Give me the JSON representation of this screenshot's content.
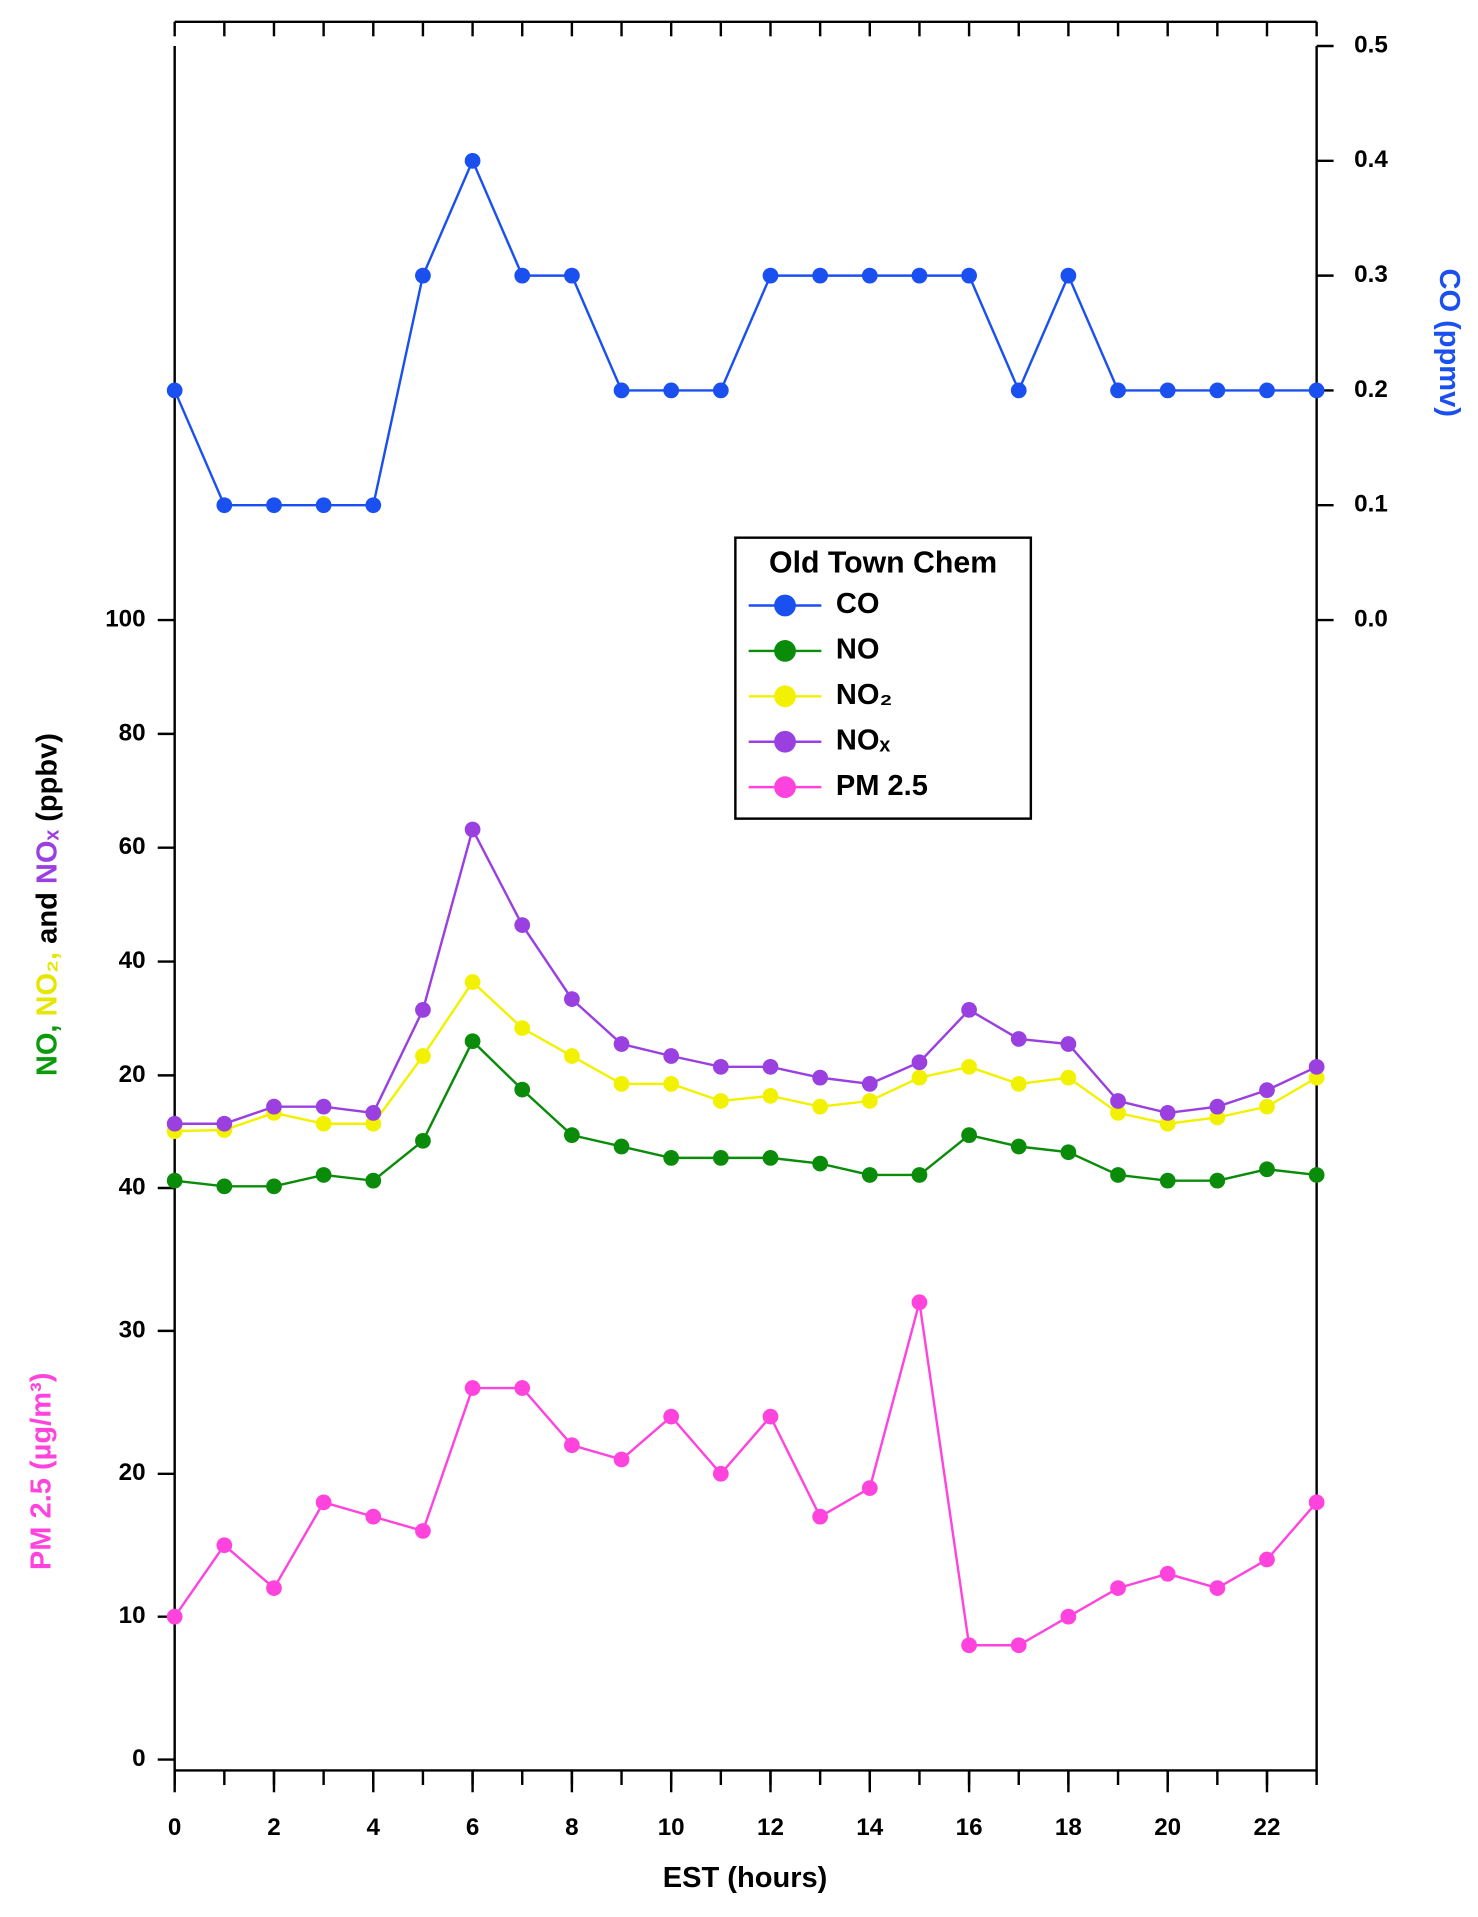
{
  "chart_data": {
    "type": "line",
    "x": [
      0,
      1,
      2,
      3,
      4,
      5,
      6,
      7,
      8,
      9,
      10,
      11,
      12,
      13,
      14,
      15,
      16,
      17,
      18,
      19,
      20,
      21,
      22,
      23
    ],
    "xlim": [
      0,
      23
    ],
    "xticks": [
      0,
      2,
      4,
      6,
      8,
      10,
      12,
      14,
      16,
      18,
      20,
      22
    ],
    "xlabel": "EST (hours)",
    "legend_title": "Old Town Chem",
    "ylim": [
      0,
      100
    ],
    "yticks": [
      20,
      40,
      60,
      80,
      100
    ],
    "ylabel": [
      {
        "text": "NO, ",
        "color": "#0a9a0a"
      },
      {
        "text": "NO₂, ",
        "color": "#e6e600"
      },
      {
        "text": "and ",
        "color": "#000000"
      },
      {
        "text": "NOₓ",
        "color": "#9a40e0"
      },
      {
        "text": " (ppbv)",
        "color": "#000000"
      }
    ],
    "y2lim": [
      0,
      0.5
    ],
    "y2ticks": [
      {
        "value": 0,
        "label": "0.0"
      },
      0.1,
      0.2,
      0.3,
      0.4,
      0.5
    ],
    "y2label": "CO (ppmv)",
    "y2color": "#1a50f0",
    "y3lim": [
      0,
      40
    ],
    "y3ticks": [
      0,
      10,
      20,
      30,
      40
    ],
    "y3label": "PM 2.5 (µg/m³)",
    "y3color": "#ff44dd",
    "series": [
      {
        "name": "CO",
        "color": "#1a50f0",
        "axis": "y2",
        "values": [
          0.2,
          0.1,
          0.1,
          0.1,
          0.1,
          0.3,
          0.4,
          0.3,
          0.3,
          0.2,
          0.2,
          0.2,
          0.3,
          0.3,
          0.3,
          0.3,
          0.3,
          0.2,
          0.3,
          0.2,
          0.2,
          0.2,
          0.2,
          0.2
        ]
      },
      {
        "name": "NO",
        "color": "#0a8c0a",
        "axis": "y",
        "values": [
          1.5,
          0.5,
          0.5,
          2.5,
          1.5,
          8.5,
          26,
          17.5,
          9.5,
          7.5,
          5.5,
          5.5,
          5.5,
          4.5,
          2.5,
          2.5,
          9.5,
          7.5,
          6.5,
          2.5,
          1.5,
          1.5,
          3.5,
          2.5
        ]
      },
      {
        "name": "NO₂",
        "color": "#f2f200",
        "axis": "y",
        "values": [
          10.2,
          10.4,
          13.4,
          11.5,
          11.5,
          23.4,
          36.4,
          28.3,
          23.4,
          18.5,
          18.5,
          15.5,
          16.4,
          14.5,
          15.5,
          19.6,
          21.5,
          18.5,
          19.6,
          13.4,
          11.5,
          12.6,
          14.5,
          19.6
        ]
      },
      {
        "name": "NOₓ",
        "color": "#9a40e0",
        "axis": "y",
        "values": [
          11.5,
          11.5,
          14.5,
          14.5,
          13.4,
          31.5,
          63.2,
          46.4,
          33.4,
          25.5,
          23.4,
          21.5,
          21.5,
          19.6,
          18.5,
          22.3,
          31.5,
          26.4,
          25.5,
          15.5,
          13.4,
          14.5,
          17.4,
          21.5
        ]
      },
      {
        "name": "PM 2.5",
        "color": "#ff44dd",
        "axis": "y3",
        "values": [
          10,
          15,
          12,
          18,
          17,
          16,
          26,
          26,
          22,
          21,
          24,
          20,
          24,
          17,
          19,
          32,
          8,
          8,
          10,
          12,
          13,
          12,
          14,
          18
        ]
      }
    ]
  }
}
